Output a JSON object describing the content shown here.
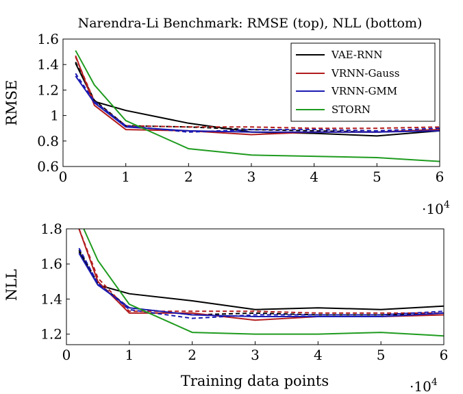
{
  "chart_data": [
    {
      "type": "line",
      "title": "Narendra-Li Benchmark: RMSE (top), NLL (bottom)",
      "xlabel": "",
      "ylabel": "RMSE",
      "x_scale_label": "·10",
      "x_scale_exp": "4",
      "xlim": [
        0,
        6
      ],
      "ylim": [
        0.6,
        1.6
      ],
      "xticks": [
        "0",
        "1",
        "2",
        "3",
        "4",
        "5",
        "6"
      ],
      "yticks": [
        "0.6",
        "0.8",
        "1",
        "1.2",
        "1.4",
        "1.6"
      ],
      "legend": "top-right",
      "grid": false,
      "series": [
        {
          "name": "VAE-RNN",
          "color": "#000000",
          "dashed": false,
          "x": [
            0.2,
            0.5,
            1,
            2,
            3,
            4,
            5,
            6
          ],
          "y": [
            1.41,
            1.11,
            1.04,
            0.94,
            0.87,
            0.86,
            0.84,
            0.88
          ]
        },
        {
          "name": "",
          "color": "#000000",
          "dashed": true,
          "x": [
            0.2,
            0.5,
            1,
            2,
            3,
            4,
            5,
            6
          ],
          "y": [
            1.42,
            1.12,
            0.92,
            0.91,
            0.89,
            0.88,
            0.87,
            0.89
          ]
        },
        {
          "name": "VRNN-Gauss",
          "color": "#b21c1c",
          "dashed": false,
          "x": [
            0.2,
            0.5,
            1,
            2,
            3,
            4,
            5,
            6
          ],
          "y": [
            1.47,
            1.08,
            0.89,
            0.88,
            0.85,
            0.87,
            0.87,
            0.89
          ]
        },
        {
          "name": "",
          "color": "#b21c1c",
          "dashed": true,
          "x": [
            0.2,
            0.5,
            1,
            2,
            3,
            4,
            5,
            6
          ],
          "y": [
            1.46,
            1.11,
            0.92,
            0.91,
            0.91,
            0.9,
            0.9,
            0.91
          ]
        },
        {
          "name": "VRNN-GMM",
          "color": "#1a1ab2",
          "dashed": false,
          "x": [
            0.2,
            0.5,
            1,
            2,
            3,
            4,
            5,
            6
          ],
          "y": [
            1.31,
            1.1,
            0.91,
            0.88,
            0.87,
            0.87,
            0.87,
            0.88
          ]
        },
        {
          "name": "",
          "color": "#1a1ab2",
          "dashed": true,
          "x": [
            0.2,
            0.5,
            1,
            2,
            3,
            4,
            5,
            6
          ],
          "y": [
            1.33,
            1.11,
            0.92,
            0.87,
            0.89,
            0.89,
            0.88,
            0.9
          ]
        },
        {
          "name": "STORN",
          "color": "#1e9b1e",
          "dashed": false,
          "x": [
            0.2,
            0.5,
            1,
            2,
            3,
            4,
            5,
            6
          ],
          "y": [
            1.51,
            1.24,
            0.96,
            0.74,
            0.69,
            0.68,
            0.67,
            0.64
          ]
        }
      ]
    },
    {
      "type": "line",
      "title": "",
      "xlabel": "Training data points",
      "ylabel": "NLL",
      "x_scale_label": "·10",
      "x_scale_exp": "4",
      "xlim": [
        0,
        6
      ],
      "ylim": [
        1.14,
        1.8
      ],
      "xticks": [
        "0",
        "1",
        "2",
        "3",
        "4",
        "5",
        "6"
      ],
      "yticks": [
        "1.2",
        "1.4",
        "1.6",
        "1.8"
      ],
      "grid": false,
      "series": [
        {
          "name": "VAE-RNN",
          "color": "#000000",
          "dashed": false,
          "x": [
            0.2,
            0.5,
            1,
            2,
            3,
            4,
            5,
            6
          ],
          "y": [
            1.67,
            1.48,
            1.43,
            1.39,
            1.34,
            1.35,
            1.34,
            1.36
          ]
        },
        {
          "name": "",
          "color": "#000000",
          "dashed": true,
          "x": [
            0.2,
            0.5,
            1,
            2,
            3,
            4,
            5,
            6
          ],
          "y": [
            1.68,
            1.49,
            1.35,
            1.31,
            1.32,
            1.31,
            1.31,
            1.32
          ]
        },
        {
          "name": "VRNN-Gauss",
          "color": "#b21c1c",
          "dashed": false,
          "x": [
            0.2,
            0.5,
            1,
            2,
            3,
            4,
            5,
            6
          ],
          "y": [
            1.8,
            1.5,
            1.32,
            1.32,
            1.28,
            1.3,
            1.3,
            1.31
          ]
        },
        {
          "name": "",
          "color": "#b21c1c",
          "dashed": true,
          "x": [
            0.2,
            0.5,
            1,
            2,
            3,
            4,
            5,
            6
          ],
          "y": [
            1.8,
            1.52,
            1.33,
            1.33,
            1.33,
            1.32,
            1.32,
            1.32
          ]
        },
        {
          "name": "VRNN-GMM",
          "color": "#1a1ab2",
          "dashed": false,
          "x": [
            0.2,
            0.5,
            1,
            2,
            3,
            4,
            5,
            6
          ],
          "y": [
            1.66,
            1.48,
            1.35,
            1.31,
            1.3,
            1.3,
            1.3,
            1.32
          ]
        },
        {
          "name": "",
          "color": "#1a1ab2",
          "dashed": true,
          "x": [
            0.2,
            0.5,
            1,
            2,
            3,
            4,
            5,
            6
          ],
          "y": [
            1.69,
            1.49,
            1.34,
            1.29,
            1.31,
            1.31,
            1.31,
            1.33
          ]
        },
        {
          "name": "STORN",
          "color": "#1e9b1e",
          "dashed": false,
          "x": [
            0.2,
            0.5,
            1,
            2,
            3,
            4,
            5,
            6
          ],
          "y": [
            1.86,
            1.62,
            1.37,
            1.21,
            1.2,
            1.2,
            1.21,
            1.19
          ]
        }
      ]
    }
  ]
}
